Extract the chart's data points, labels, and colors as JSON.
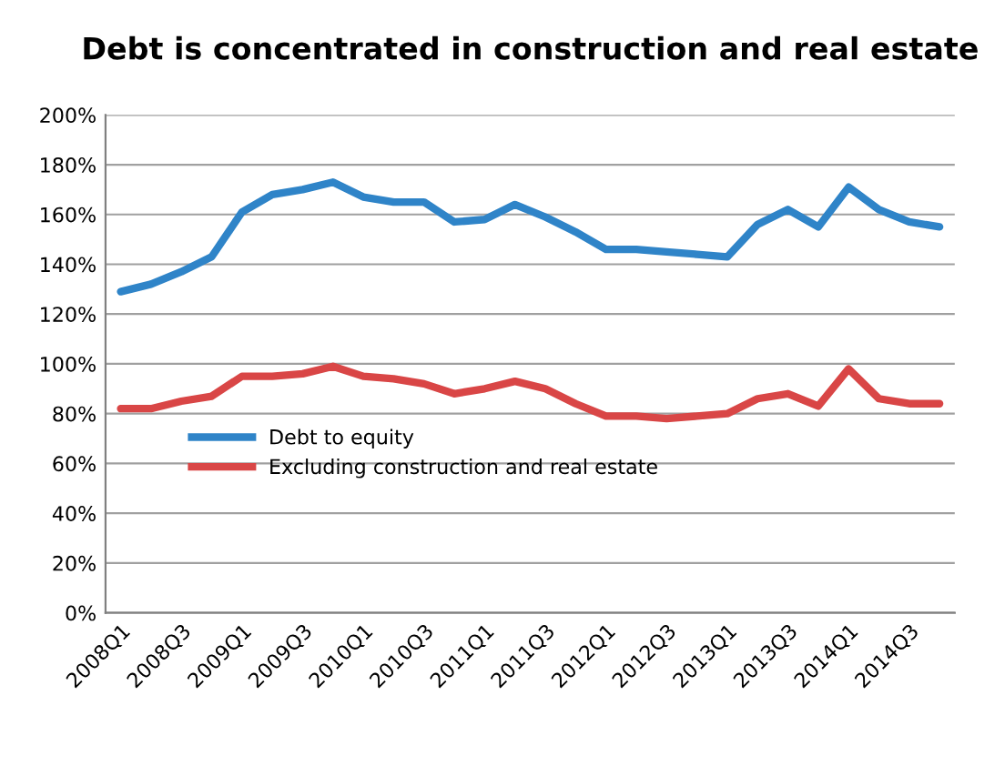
{
  "chart_data": {
    "type": "line",
    "title": "Debt is concentrated in construction and real estate",
    "categories": [
      "2008Q1",
      null,
      "2008Q3",
      null,
      "2009Q1",
      null,
      "2009Q3",
      null,
      "2010Q1",
      null,
      "2010Q3",
      null,
      "2011Q1",
      null,
      "2011Q3",
      null,
      "2012Q1",
      null,
      "2012Q3",
      null,
      "2013Q1",
      null,
      "2013Q3",
      null,
      "2014Q1",
      null,
      "2014Q3",
      null
    ],
    "series": [
      {
        "name": "Debt to equity",
        "color": "#2f84c8",
        "values": [
          129,
          132,
          137,
          143,
          161,
          168,
          170,
          173,
          167,
          165,
          165,
          157,
          158,
          164,
          159,
          153,
          146,
          146,
          145,
          144,
          143,
          156,
          162,
          155,
          171,
          162,
          157,
          155
        ]
      },
      {
        "name": "Excluding construction and real estate",
        "color": "#d94646",
        "values": [
          82,
          82,
          85,
          87,
          95,
          95,
          96,
          99,
          95,
          94,
          92,
          88,
          90,
          93,
          90,
          84,
          79,
          79,
          78,
          79,
          80,
          86,
          88,
          83,
          98,
          86,
          84,
          84
        ]
      }
    ],
    "ylim": [
      0,
      200
    ],
    "yticks": [
      {
        "value": 0,
        "label": "0%"
      },
      {
        "value": 20,
        "label": "20%"
      },
      {
        "value": 40,
        "label": "40%"
      },
      {
        "value": 60,
        "label": "60%"
      },
      {
        "value": 80,
        "label": "80%"
      },
      {
        "value": 100,
        "label": "100%"
      },
      {
        "value": 120,
        "label": "120%"
      },
      {
        "value": 140,
        "label": "140%"
      },
      {
        "value": 160,
        "label": "160%"
      },
      {
        "value": 180,
        "label": "180%"
      },
      {
        "value": 200,
        "label": "200%"
      }
    ],
    "grid": "y",
    "legend": "left",
    "marker": "none",
    "line_style": "solid"
  }
}
